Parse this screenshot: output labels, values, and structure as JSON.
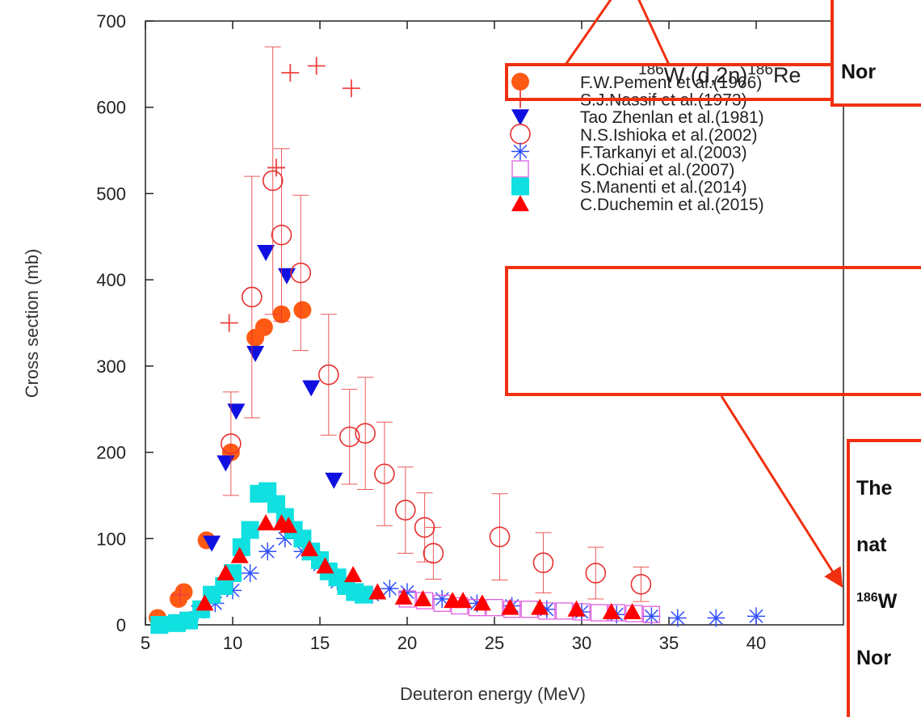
{
  "chart_data": {
    "type": "scatter",
    "title": [
      {
        "sup": "186"
      },
      {
        "text": "W (d,2n)"
      },
      {
        "sup": "186"
      },
      {
        "text": "Re"
      }
    ],
    "x_label": "Deuteron energy (MeV)",
    "y_label": "Cross section (mb)",
    "xlim": [
      5,
      45
    ],
    "ylim": [
      0,
      700
    ],
    "xticks": [
      5,
      10,
      15,
      20,
      25,
      30,
      35,
      40
    ],
    "yticks": [
      0,
      100,
      200,
      300,
      400,
      500,
      600,
      700
    ],
    "series": [
      {
        "name": "F.W.Pement et al.(1966)",
        "marker": "filled-circle",
        "color": "#ff5a14",
        "x": [
          5.7,
          6.9,
          7.2,
          8.5,
          9.9,
          11.3,
          11.8,
          12.8,
          14.0
        ],
        "values": [
          8,
          30,
          38,
          98,
          200,
          333,
          345,
          360,
          365
        ]
      },
      {
        "name": "S.J.Nassif et al.(1973)",
        "marker": "plus",
        "color": "#ee4040",
        "x": [
          7.0,
          9.8,
          12.5,
          13.3,
          14.8,
          16.8
        ],
        "values": [
          35,
          350,
          530,
          640,
          648,
          622
        ]
      },
      {
        "name": "Tao Zhenlan et al.(1981)",
        "marker": "down-triangle",
        "color": "#1010e0",
        "x": [
          8.8,
          9.6,
          10.2,
          11.3,
          11.9,
          13.1,
          14.5,
          15.8
        ],
        "values": [
          95,
          188,
          248,
          315,
          432,
          405,
          275,
          168
        ]
      },
      {
        "name": "N.S.Ishioka et al.(2002)",
        "marker": "open-circle",
        "color": "#e83030",
        "x": [
          9.9,
          11.1,
          12.3,
          12.8,
          13.9,
          15.5,
          16.7,
          17.6,
          18.7,
          19.9,
          21.0,
          21.5,
          25.3,
          27.8,
          30.8,
          33.4
        ],
        "values": [
          210,
          380,
          515,
          452,
          408,
          290,
          218,
          222,
          175,
          133,
          113,
          83,
          102,
          72,
          60,
          47
        ],
        "errors": [
          60,
          140,
          155,
          100,
          90,
          70,
          55,
          65,
          60,
          50,
          40,
          30,
          50,
          35,
          30,
          20
        ]
      },
      {
        "name": "F.Tarkanyi et al.(2003)",
        "marker": "asterisk",
        "color": "#3050ff",
        "x": [
          7,
          8,
          9,
          10,
          11,
          12,
          13,
          14,
          15,
          16,
          17,
          18,
          19,
          20,
          22,
          24,
          26,
          28,
          30,
          32,
          34,
          35.5,
          37.7,
          40
        ],
        "values": [
          5,
          15,
          25,
          40,
          60,
          85,
          100,
          85,
          70,
          50,
          38,
          35,
          42,
          38,
          30,
          25,
          22,
          18,
          15,
          12,
          10,
          8,
          8,
          10
        ]
      },
      {
        "name": "K.Ochiai et al.(2007)",
        "marker": "open-square",
        "color": "#e060e0",
        "x": [
          20,
          21,
          22,
          23,
          24,
          25,
          26,
          27,
          28,
          29,
          30,
          31,
          32,
          33,
          34
        ],
        "values": [
          30,
          28,
          25,
          22,
          20,
          20,
          18,
          18,
          16,
          16,
          15,
          14,
          14,
          13,
          12
        ]
      },
      {
        "name": "S.Manenti et al.(2014)",
        "marker": "filled-square",
        "color": "#10e0e0",
        "x": [
          5.8,
          6.8,
          7.5,
          8.2,
          8.8,
          9.5,
          10,
          10.5,
          11,
          11.5,
          12,
          12.5,
          13,
          13.5,
          14,
          14.5,
          15,
          15.5,
          16,
          16.5,
          17,
          17.5
        ],
        "values": [
          0,
          2,
          5,
          18,
          35,
          45,
          60,
          90,
          110,
          152,
          155,
          140,
          125,
          110,
          100,
          85,
          75,
          62,
          55,
          45,
          38,
          35
        ]
      },
      {
        "name": "C.Duchemin et al.(2015)",
        "marker": "up-triangle",
        "color": "#ff0000",
        "x": [
          8.4,
          9.6,
          10.4,
          11.9,
          12.8,
          13.2,
          14.4,
          15.3,
          16.9,
          18.3,
          19.8,
          20.9,
          22.6,
          23.2,
          24.3,
          25.9,
          27.6,
          29.7,
          31.7,
          32.9
        ],
        "values": [
          25,
          60,
          80,
          118,
          118,
          115,
          88,
          68,
          58,
          38,
          32,
          30,
          28,
          28,
          25,
          20,
          20,
          18,
          15,
          15
        ]
      }
    ]
  },
  "notes": {
    "top": [
      "Nor"
    ],
    "bottom": [
      {
        "text": "The"
      },
      {
        "text": "nat"
      },
      {
        "sup": "186",
        "text": "W"
      },
      {
        "text": "Nor"
      }
    ]
  }
}
